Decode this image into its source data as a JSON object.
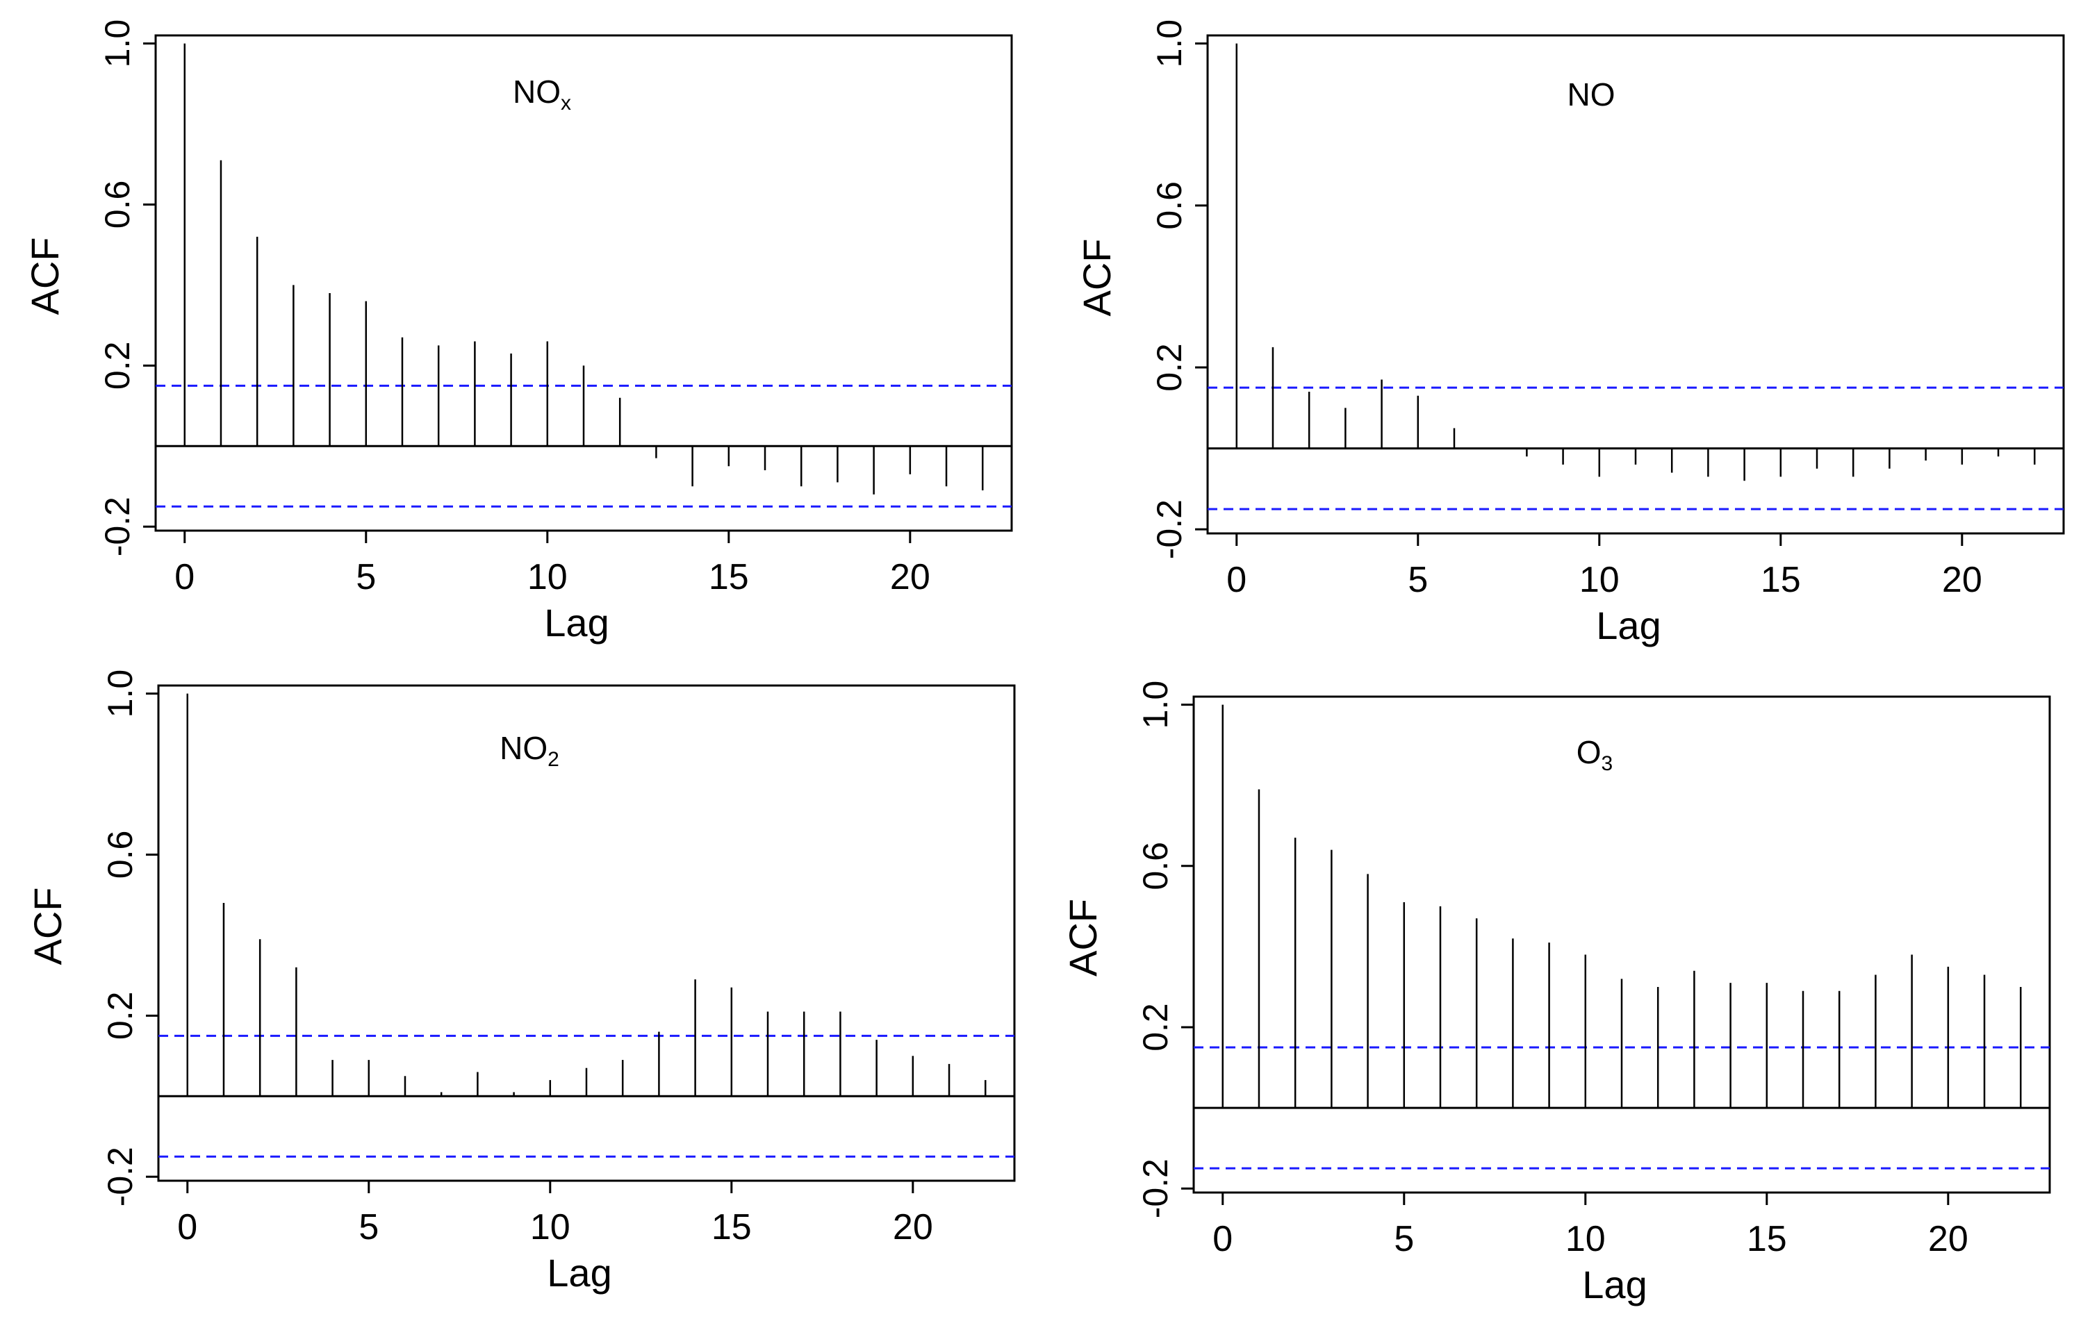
{
  "chart_data": [
    {
      "type": "bar",
      "subtype": "acf",
      "title": "NO",
      "title_subscript": "x",
      "xlabel": "Lag",
      "ylabel": "ACF",
      "xlim": [
        -0.8,
        22.8
      ],
      "ylim": [
        -0.21,
        1.02
      ],
      "x_ticks": [
        0,
        5,
        10,
        15,
        20
      ],
      "y_ticks": [
        -0.2,
        0.2,
        0.6,
        1.0
      ],
      "y_tick_labels": [
        "-0.2",
        "0.2",
        "0.6",
        "1.0"
      ],
      "confidence_band": [
        0.15,
        -0.15
      ],
      "lags": [
        0,
        1,
        2,
        3,
        4,
        5,
        6,
        7,
        8,
        9,
        10,
        11,
        12,
        13,
        14,
        15,
        16,
        17,
        18,
        19,
        20,
        21,
        22
      ],
      "values": [
        1.0,
        0.71,
        0.52,
        0.4,
        0.38,
        0.36,
        0.27,
        0.25,
        0.26,
        0.23,
        0.26,
        0.2,
        0.12,
        -0.03,
        -0.1,
        -0.05,
        -0.06,
        -0.1,
        -0.09,
        -0.12,
        -0.07,
        -0.1,
        -0.11
      ]
    },
    {
      "type": "bar",
      "subtype": "acf",
      "title": "NO",
      "title_subscript": "",
      "xlabel": "Lag",
      "ylabel": "ACF",
      "xlim": [
        -0.8,
        22.8
      ],
      "ylim": [
        -0.21,
        1.02
      ],
      "x_ticks": [
        0,
        5,
        10,
        15,
        20
      ],
      "y_ticks": [
        -0.2,
        0.2,
        0.6,
        1.0
      ],
      "y_tick_labels": [
        "-0.2",
        "0.2",
        "0.6",
        "1.0"
      ],
      "confidence_band": [
        0.15,
        -0.15
      ],
      "lags": [
        0,
        1,
        2,
        3,
        4,
        5,
        6,
        7,
        8,
        9,
        10,
        11,
        12,
        13,
        14,
        15,
        16,
        17,
        18,
        19,
        20,
        21,
        22
      ],
      "values": [
        1.0,
        0.25,
        0.14,
        0.1,
        0.17,
        0.13,
        0.05,
        0.0,
        -0.02,
        -0.04,
        -0.07,
        -0.04,
        -0.06,
        -0.07,
        -0.08,
        -0.07,
        -0.05,
        -0.07,
        -0.05,
        -0.03,
        -0.04,
        -0.02,
        -0.04
      ]
    },
    {
      "type": "bar",
      "subtype": "acf",
      "title": "NO",
      "title_subscript": "2",
      "xlabel": "Lag",
      "ylabel": "ACF",
      "xlim": [
        -0.8,
        22.8
      ],
      "ylim": [
        -0.21,
        1.02
      ],
      "x_ticks": [
        0,
        5,
        10,
        15,
        20
      ],
      "y_ticks": [
        -0.2,
        0.2,
        0.6,
        1.0
      ],
      "y_tick_labels": [
        "-0.2",
        "0.2",
        "0.6",
        "1.0"
      ],
      "confidence_band": [
        0.15,
        -0.15
      ],
      "lags": [
        0,
        1,
        2,
        3,
        4,
        5,
        6,
        7,
        8,
        9,
        10,
        11,
        12,
        13,
        14,
        15,
        16,
        17,
        18,
        19,
        20,
        21,
        22
      ],
      "values": [
        1.0,
        0.48,
        0.39,
        0.32,
        0.09,
        0.09,
        0.05,
        0.01,
        0.06,
        0.01,
        0.04,
        0.07,
        0.09,
        0.16,
        0.29,
        0.27,
        0.21,
        0.21,
        0.21,
        0.14,
        0.1,
        0.08,
        0.04
      ]
    },
    {
      "type": "bar",
      "subtype": "acf",
      "title": "O",
      "title_subscript": "3",
      "xlabel": "Lag",
      "ylabel": "ACF",
      "xlim": [
        -0.8,
        22.8
      ],
      "ylim": [
        -0.21,
        1.02
      ],
      "x_ticks": [
        0,
        5,
        10,
        15,
        20
      ],
      "y_ticks": [
        -0.2,
        0.2,
        0.6,
        1.0
      ],
      "y_tick_labels": [
        "-0.2",
        "0.2",
        "0.6",
        "1.0"
      ],
      "confidence_band": [
        0.15,
        -0.15
      ],
      "lags": [
        0,
        1,
        2,
        3,
        4,
        5,
        6,
        7,
        8,
        9,
        10,
        11,
        12,
        13,
        14,
        15,
        16,
        17,
        18,
        19,
        20,
        21,
        22
      ],
      "values": [
        1.0,
        0.79,
        0.67,
        0.64,
        0.58,
        0.51,
        0.5,
        0.47,
        0.42,
        0.41,
        0.38,
        0.32,
        0.3,
        0.34,
        0.31,
        0.31,
        0.29,
        0.29,
        0.33,
        0.38,
        0.35,
        0.33,
        0.3
      ]
    }
  ],
  "colors": {
    "axis": "#000000",
    "bars": "#000000",
    "confidence_band": "#1a1aff"
  }
}
